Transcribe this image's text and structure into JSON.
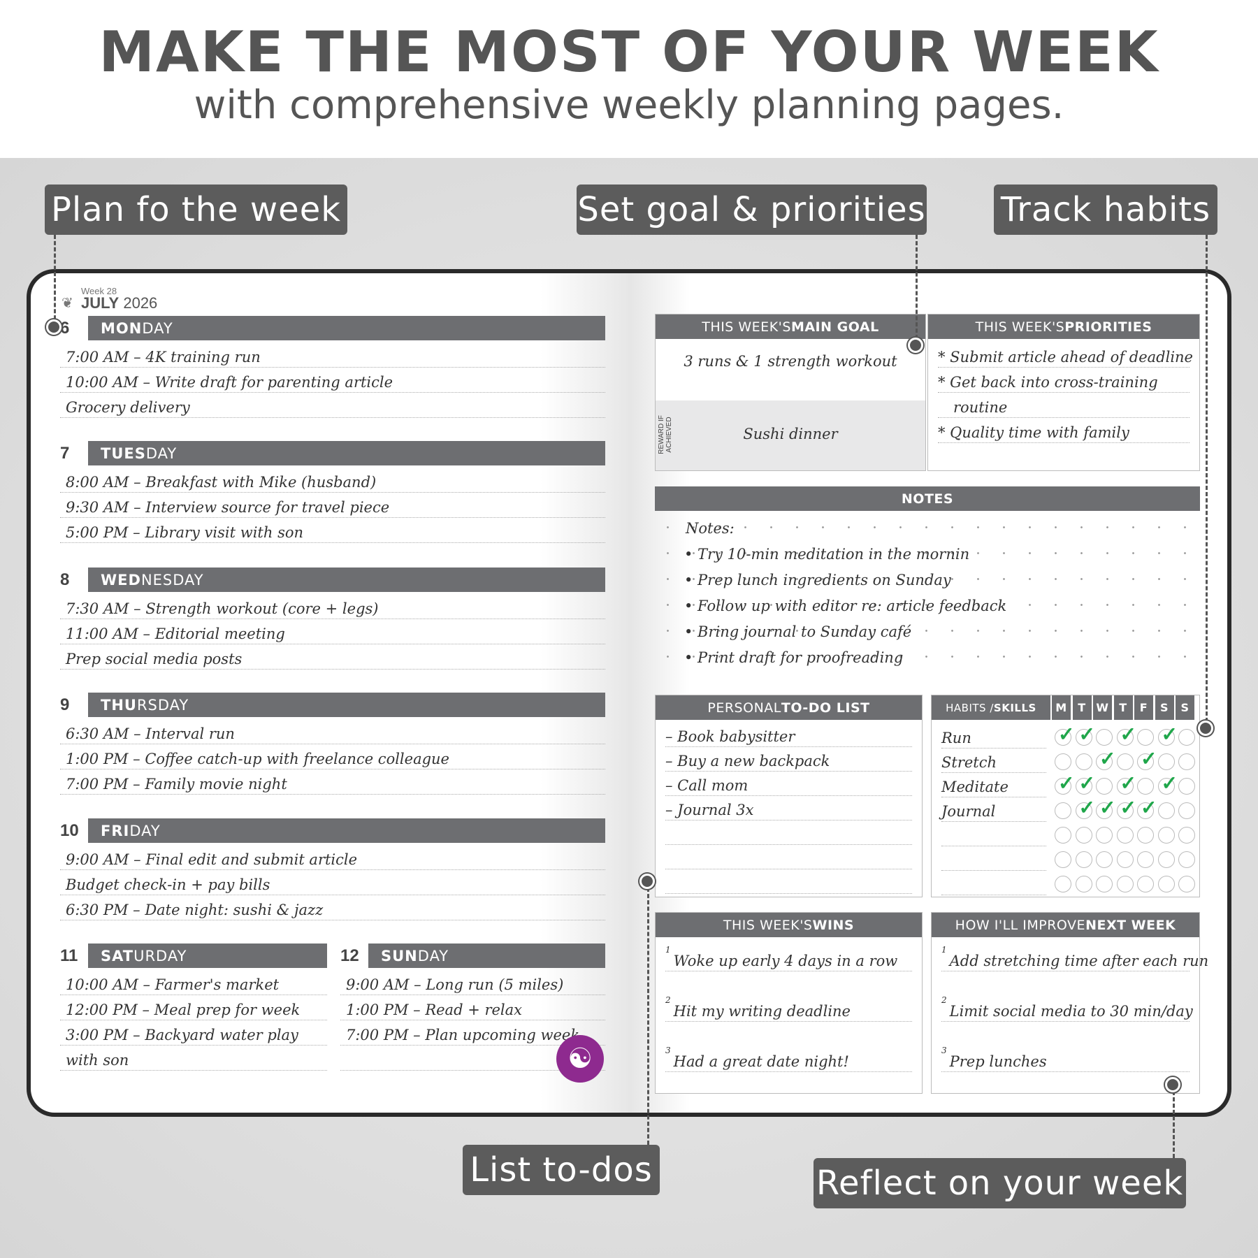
{
  "header": {
    "title": "MAKE THE MOST OF YOUR WEEK",
    "subtitle": "with comprehensive weekly planning pages."
  },
  "callouts": {
    "plan": "Plan fo the week",
    "goal": "Set goal & priorities",
    "habits": "Track habits",
    "todos": "List to-dos",
    "reflect": "Reflect on your week"
  },
  "planner": {
    "week": "Week 28",
    "month": "JULY",
    "year": "2026"
  },
  "days": [
    {
      "num": "6",
      "bold": "MON",
      "rest": "DAY",
      "entries": [
        "7:00 AM – 4K training run",
        "10:00 AM – Write draft for parenting article",
        "Grocery delivery"
      ]
    },
    {
      "num": "7",
      "bold": "TUES",
      "rest": "DAY",
      "entries": [
        "8:00 AM – Breakfast with Mike (husband)",
        "9:30 AM – Interview source for travel piece",
        "5:00 PM – Library visit with son"
      ]
    },
    {
      "num": "8",
      "bold": "WED",
      "rest": "NESDAY",
      "entries": [
        "7:30 AM – Strength workout (core + legs)",
        "11:00 AM – Editorial meeting",
        "Prep social media posts"
      ]
    },
    {
      "num": "9",
      "bold": "THU",
      "rest": "RSDAY",
      "entries": [
        "6:30 AM – Interval run",
        "1:00 PM – Coffee catch-up with freelance colleague",
        "7:00 PM – Family movie night"
      ]
    },
    {
      "num": "10",
      "bold": "FRI",
      "rest": "DAY",
      "entries": [
        "9:00 AM – Final edit and submit article",
        "Budget check-in + pay bills",
        "6:30 PM – Date night: sushi & jazz"
      ]
    },
    {
      "num": "11",
      "bold": "SAT",
      "rest": "URDAY",
      "entries": [
        "10:00 AM – Farmer's market",
        "12:00 PM – Meal prep for week",
        "3:00 PM – Backyard water play",
        "with son"
      ]
    },
    {
      "num": "12",
      "bold": "SUN",
      "rest": "DAY",
      "entries": [
        "9:00 AM – Long run (5 miles)",
        "1:00 PM – Read + relax",
        "7:00 PM – Plan upcoming week"
      ]
    }
  ],
  "goal": {
    "head_light": "THIS WEEK'S ",
    "head_bold": "MAIN GOAL",
    "value": "3 runs & 1 strength workout",
    "reward_label": "REWARD IF ACHIEVED",
    "reward": "Sushi dinner"
  },
  "priorities": {
    "head_light": "THIS WEEK'S ",
    "head_bold": "PRIORITIES",
    "items": [
      "* Submit article ahead of deadline",
      "* Get back into cross-training",
      "routine",
      "* Quality time with family"
    ]
  },
  "notes": {
    "head": "NOTES",
    "items": [
      "Notes:",
      "• Try 10-min meditation in the mornin",
      "• Prep lunch ingredients on Sunday",
      "• Follow up with editor re: article feedback",
      "• Bring journal to Sunday café",
      "• Print draft for proofreading"
    ]
  },
  "todo": {
    "head_light": "PERSONAL ",
    "head_bold": "TO-DO LIST",
    "items": [
      "– Book babysitter",
      "– Buy a new backpack",
      "– Call mom",
      "– Journal 3x",
      "",
      "",
      ""
    ]
  },
  "habits": {
    "head_light": "HABITS / ",
    "head_bold": "SKILLS",
    "days": [
      "M",
      "T",
      "W",
      "T",
      "F",
      "S",
      "S"
    ],
    "check_color": "#1fa64a",
    "rows": [
      {
        "name": "Run",
        "checks": [
          1,
          1,
          0,
          1,
          0,
          1,
          0
        ]
      },
      {
        "name": "Stretch",
        "checks": [
          0,
          0,
          1,
          0,
          1,
          0,
          0
        ]
      },
      {
        "name": "Meditate",
        "checks": [
          1,
          1,
          0,
          1,
          0,
          1,
          0
        ]
      },
      {
        "name": "Journal",
        "checks": [
          0,
          1,
          1,
          1,
          1,
          0,
          0
        ]
      },
      {
        "name": "",
        "checks": [
          0,
          0,
          0,
          0,
          0,
          0,
          0
        ]
      },
      {
        "name": "",
        "checks": [
          0,
          0,
          0,
          0,
          0,
          0,
          0
        ]
      },
      {
        "name": "",
        "checks": [
          0,
          0,
          0,
          0,
          0,
          0,
          0
        ]
      }
    ]
  },
  "wins": {
    "head_light": "THIS WEEK'S ",
    "head_bold": "WINS",
    "items": [
      "Woke up early 4 days in a row",
      "Hit my writing deadline",
      "Had a great date night!"
    ]
  },
  "improve": {
    "head_light": "HOW I'LL IMPROVE ",
    "head_bold": "NEXT WEEK",
    "items": [
      "Add stretching time after each run",
      "Limit social media to 30 min/day",
      "Prep lunches"
    ]
  },
  "colors": {
    "bar": "#6d6e71",
    "callout": "#5c5c5c",
    "badge": "#8e2a8f"
  }
}
